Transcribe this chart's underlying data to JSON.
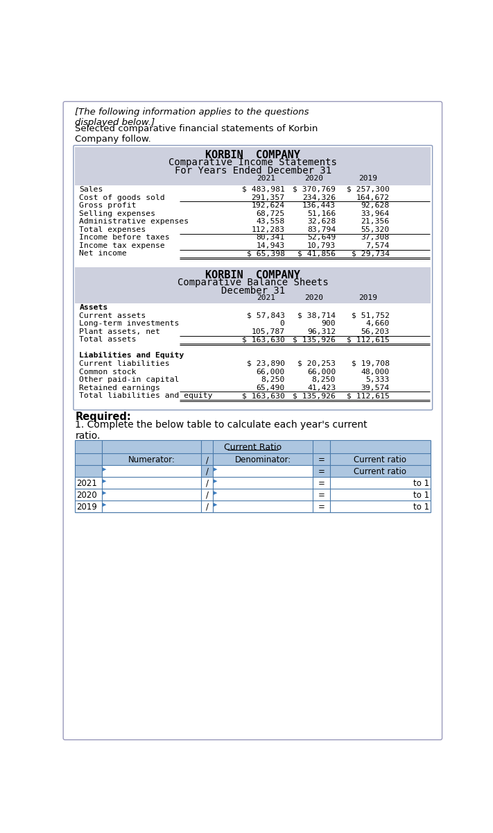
{
  "intro_italic": "[The following information applies to the questions\ndisplayed below.]",
  "intro_text": "Selected comparative financial statements of Korbin\nCompany follow.",
  "income_title1": "KORBIN  COMPANY",
  "income_title2": "Comparative Income Statements",
  "income_title3": "For Years Ended December 31",
  "income_years": [
    "2021",
    "2020",
    "2019"
  ],
  "income_rows": [
    [
      "Sales",
      "$ 483,981",
      "$ 370,769",
      "$ 257,300"
    ],
    [
      "Cost of goods sold",
      "291,357",
      "234,326",
      "164,672"
    ],
    [
      "Gross profit",
      "192,624",
      "136,443",
      "92,628"
    ],
    [
      "Selling expenses",
      "68,725",
      "51,166",
      "33,964"
    ],
    [
      "Administrative expenses",
      "43,558",
      "32,628",
      "21,356"
    ],
    [
      "Total expenses",
      "112,283",
      "83,794",
      "55,320"
    ],
    [
      "Income before taxes",
      "80,341",
      "52,649",
      "37,308"
    ],
    [
      "Income tax expense",
      "14,943",
      "10,793",
      "7,574"
    ],
    [
      "Net income",
      "$ 65,398",
      "$ 41,856",
      "$ 29,734"
    ]
  ],
  "balance_title1": "KORBIN  COMPANY",
  "balance_title2": "Comparative Balance Sheets",
  "balance_title3": "December 31",
  "balance_years": [
    "2021",
    "2020",
    "2019"
  ],
  "balance_rows": [
    [
      "Assets",
      "",
      "",
      "",
      "bold"
    ],
    [
      "Current assets",
      "$ 57,843",
      "$ 38,714",
      "$ 51,752",
      "normal"
    ],
    [
      "Long-term investments",
      "0",
      "900",
      "4,660",
      "normal"
    ],
    [
      "Plant assets, net",
      "105,787",
      "96,312",
      "56,203",
      "normal"
    ],
    [
      "Total assets",
      "$ 163,630",
      "$ 135,926",
      "$ 112,615",
      "normal"
    ],
    [
      "Liabilities and Equity",
      "",
      "",
      "",
      "bold"
    ],
    [
      "Current liabilities",
      "$ 23,890",
      "$ 20,253",
      "$ 19,708",
      "normal"
    ],
    [
      "Common stock",
      "66,000",
      "66,000",
      "48,000",
      "normal"
    ],
    [
      "Other paid-in capital",
      "8,250",
      "8,250",
      "5,333",
      "normal"
    ],
    [
      "Retained earnings",
      "65,490",
      "41,423",
      "39,574",
      "normal"
    ],
    [
      "Total liabilities and equity",
      "$ 163,630",
      "$ 135,926",
      "$ 112,615",
      "normal"
    ]
  ],
  "required_text": "Required:",
  "question_text": "1. Complete the below table to calculate each year's current\nratio.",
  "table_title": "Current Ratio",
  "income_bg": "#cdd0de",
  "balance_bg": "#cdd0de",
  "table_title_bg": "#adc6e0",
  "table_header_bg": "#adc6e0",
  "table_row_bg": "#ffffff",
  "table_data_bg": "#ffffff",
  "page_bg": "#ffffff",
  "border_color": "#8899bb",
  "table_border_color": "#4a7aaa"
}
